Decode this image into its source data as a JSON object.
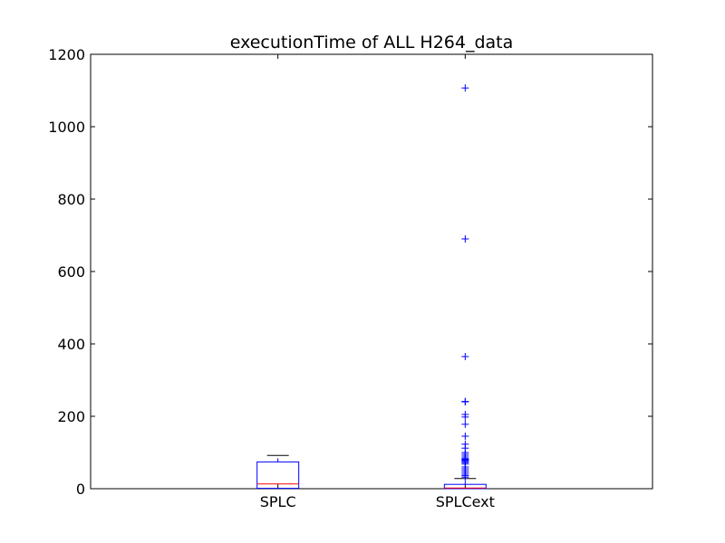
{
  "chart_data": {
    "type": "box",
    "title": "executionTime of ALL H264_data",
    "xlabel": "",
    "ylabel": "",
    "ylim": [
      0,
      1200
    ],
    "yticks": [
      0,
      200,
      400,
      600,
      800,
      1000,
      1200
    ],
    "categories": [
      "SPLC",
      "SPLCext"
    ],
    "boxes": [
      {
        "name": "SPLC",
        "whisker_low": 0,
        "q1": 1,
        "median": 13,
        "q3": 74,
        "whisker_high": 92,
        "fliers": []
      },
      {
        "name": "SPLCext",
        "whisker_low": 0,
        "q1": 0,
        "median": 2,
        "q3": 12,
        "whisker_high": 28,
        "fliers": [
          1107,
          690,
          365,
          241,
          240,
          205,
          198,
          178,
          145,
          123,
          112,
          100,
          95,
          90,
          85,
          82,
          80,
          78,
          75,
          72,
          68,
          60,
          55,
          50,
          45,
          40,
          36,
          32
        ]
      }
    ],
    "colors": {
      "box": "#0000ff",
      "median": "#ff0000",
      "whisker": "#000000",
      "flier": "#0000ff",
      "axes": "#000000"
    }
  }
}
